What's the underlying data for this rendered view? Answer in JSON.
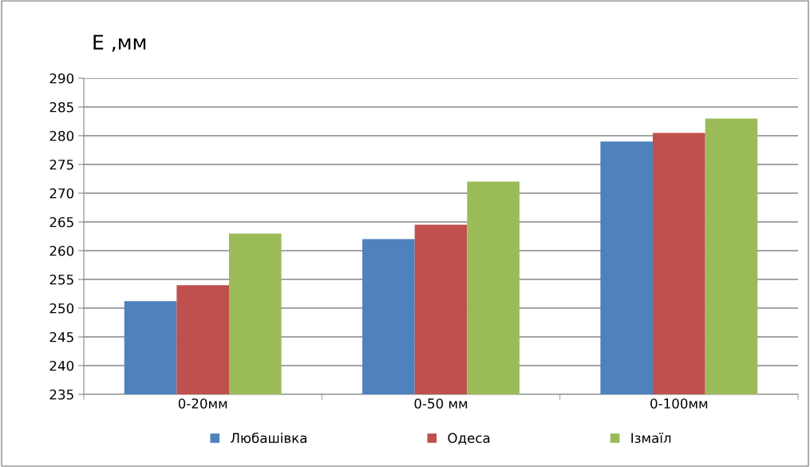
{
  "chart_data": {
    "type": "bar",
    "ylabel": "E ,мм",
    "categories": [
      "0-20мм",
      "0-50 мм",
      "0-100мм"
    ],
    "series": [
      {
        "name": "Любашівка",
        "color": "#4f81bd",
        "values": [
          251.2,
          262,
          279
        ]
      },
      {
        "name": "Одеса",
        "color": "#c0504d",
        "values": [
          254,
          264.5,
          280.5
        ]
      },
      {
        "name": "Ізмаїл",
        "color": "#9bbb59",
        "values": [
          263,
          272,
          283
        ]
      }
    ],
    "ylim": [
      235,
      290
    ],
    "yticks": [
      235,
      240,
      245,
      250,
      255,
      260,
      265,
      270,
      275,
      280,
      285,
      290
    ],
    "grid": "y",
    "legend": "bottom"
  }
}
